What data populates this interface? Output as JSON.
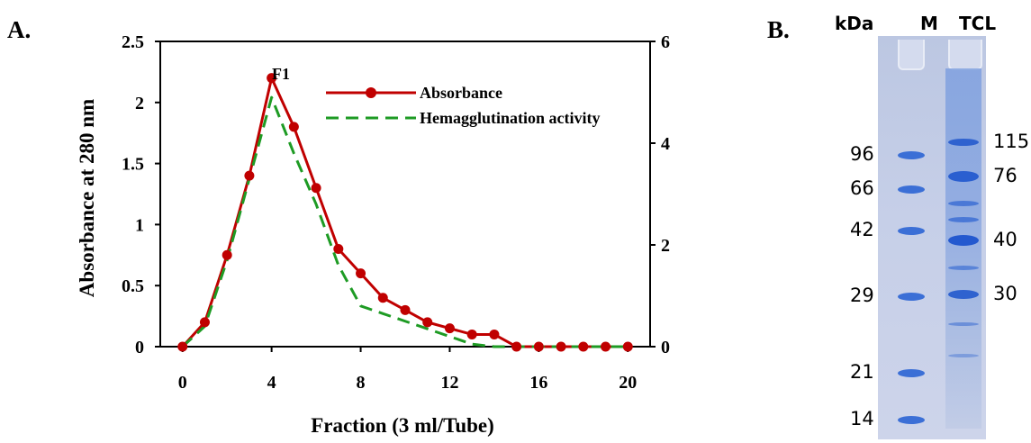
{
  "panel_a_label": "A.",
  "panel_b_label": "B.",
  "chart_data": {
    "type": "line",
    "title": "",
    "xlabel": "Fraction (3 ml/Tube)",
    "ylabel": "Absorbance at 280 nm",
    "y2label": "",
    "xlim": [
      -1,
      21
    ],
    "ylim": [
      0,
      2.5
    ],
    "y2lim": [
      0,
      6
    ],
    "xticks": [
      "0",
      "4",
      "8",
      "12",
      "16",
      "20"
    ],
    "yticks": [
      "0",
      "0.5",
      "1",
      "1.5",
      "2",
      "2.5"
    ],
    "y2ticks": [
      "0",
      "2",
      "4",
      "6"
    ],
    "legend_position": "top-right",
    "annotation": "F1",
    "series": [
      {
        "name": "Absorbance",
        "axis": "left",
        "color": "#c00000",
        "style": "solid-markers",
        "x": [
          0,
          1,
          2,
          3,
          4,
          5,
          6,
          7,
          8,
          9,
          10,
          11,
          12,
          13,
          14,
          15,
          16,
          17,
          18,
          19,
          20
        ],
        "values": [
          0,
          0.2,
          0.75,
          1.4,
          2.2,
          1.8,
          1.3,
          0.8,
          0.6,
          0.4,
          0.3,
          0.2,
          0.15,
          0.1,
          0.1,
          0,
          0,
          0,
          0,
          0,
          0
        ]
      },
      {
        "name": "Hemagglutination activity",
        "axis": "right",
        "color": "#1e9b24",
        "style": "dashed",
        "x": [
          0,
          1,
          2,
          3,
          4,
          5,
          6,
          7,
          8,
          9,
          10,
          11,
          12,
          13,
          14,
          15,
          16,
          17,
          18,
          19,
          20
        ],
        "values": [
          0,
          0.4,
          1.7,
          3.3,
          4.9,
          3.8,
          2.8,
          1.6,
          0.8,
          0.65,
          0.5,
          0.35,
          0.2,
          0.05,
          0,
          0,
          0,
          0,
          0,
          0,
          0
        ]
      }
    ]
  },
  "gel": {
    "header_kda": "kDa",
    "header_marker": "M",
    "header_tcl": "TCL",
    "marker_labels": [
      "96",
      "66",
      "42",
      "29",
      "21",
      "14"
    ],
    "tcl_labels": [
      "115",
      "76",
      "40",
      "30"
    ]
  }
}
